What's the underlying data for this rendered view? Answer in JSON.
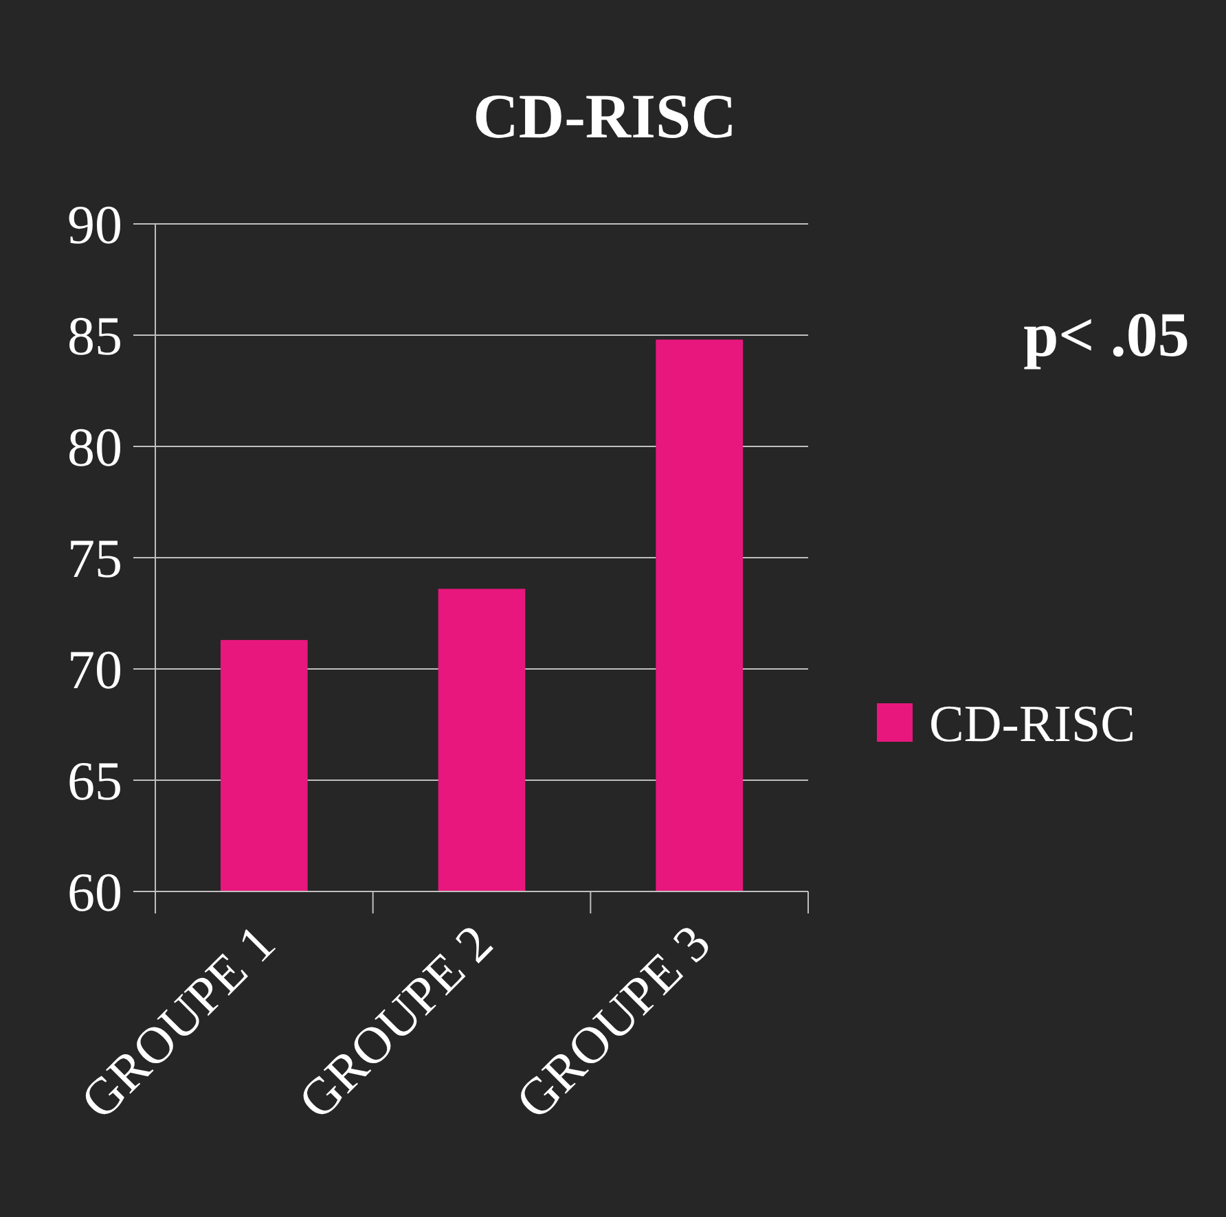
{
  "chart_data": {
    "type": "bar",
    "title": "CD-RISC",
    "categories": [
      "GROUPE 1",
      "GROUPE 2",
      "GROUPE 3"
    ],
    "series": [
      {
        "name": "CD-RISC",
        "color": "#e8177d",
        "values": [
          71.3,
          73.6,
          84.8
        ]
      }
    ],
    "ylim": [
      60,
      90
    ],
    "yticks": [
      60,
      65,
      70,
      75,
      80,
      85,
      90
    ],
    "grid": "y",
    "legend": "right",
    "annotations": [
      "p< .05"
    ]
  }
}
